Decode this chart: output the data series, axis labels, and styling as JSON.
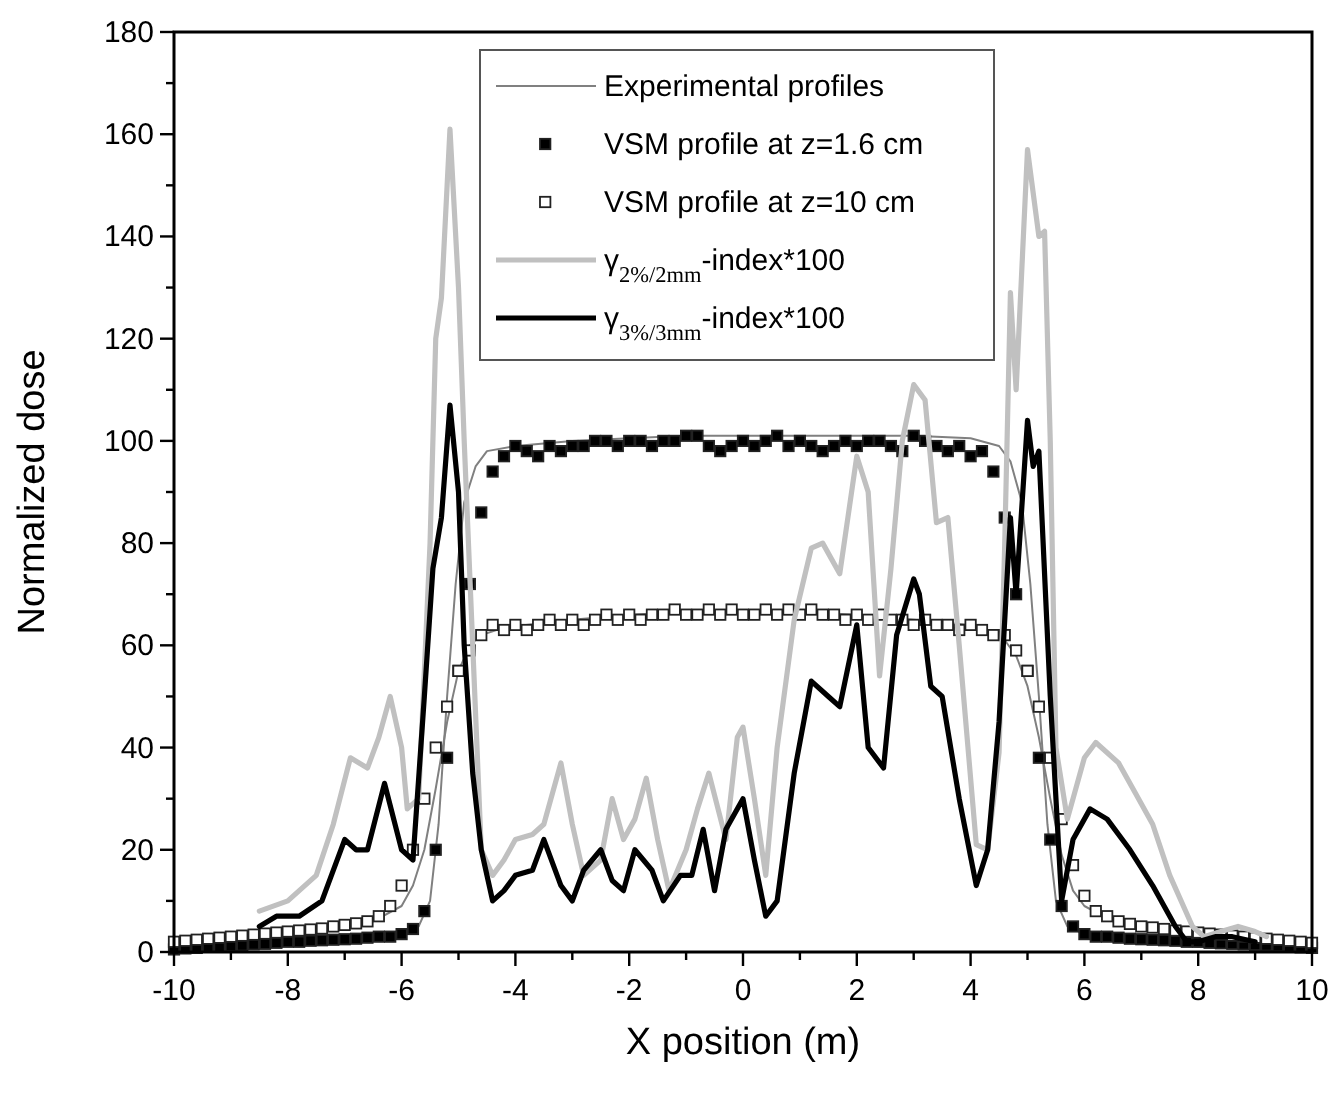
{
  "chart_data": {
    "type": "line",
    "xlabel": "X position (m)",
    "ylabel": "Normalized dose",
    "xlim": [
      -10,
      10
    ],
    "ylim": [
      0,
      180
    ],
    "xticks": [
      -10,
      {
        "value": -9,
        "label": null
      },
      -8,
      {
        "value": -7,
        "label": null
      },
      -6,
      {
        "value": -5,
        "label": null
      },
      -4,
      {
        "value": -3,
        "label": null
      },
      -2,
      {
        "value": -1,
        "label": null
      },
      0,
      {
        "value": 1,
        "label": null
      },
      2,
      {
        "value": 3,
        "label": null
      },
      4,
      {
        "value": 5,
        "label": null
      },
      6,
      {
        "value": 7,
        "label": null
      },
      8,
      {
        "value": 9,
        "label": null
      },
      10
    ],
    "yticks": [
      0,
      {
        "value": 10,
        "label": null
      },
      20,
      {
        "value": 30,
        "label": null
      },
      40,
      {
        "value": 50,
        "label": null
      },
      60,
      {
        "value": 70,
        "label": null
      },
      80,
      {
        "value": 90,
        "label": null
      },
      100,
      {
        "value": 110,
        "label": null
      },
      120,
      {
        "value": 130,
        "label": null
      },
      140,
      {
        "value": 150,
        "label": null
      },
      160,
      {
        "value": 170,
        "label": null
      },
      180
    ],
    "grid": false,
    "legend": "top",
    "series": [
      {
        "name": "Experimental profiles",
        "color": "#808080",
        "marker": "none",
        "x": [
          -10,
          -8,
          -6,
          -5.7,
          -5.5,
          -5.35,
          -5.2,
          -5.05,
          -4.9,
          -4.7,
          -4.5,
          -4,
          -3,
          -2,
          -1,
          0,
          1,
          2,
          3,
          4,
          4.5,
          4.7,
          4.9,
          5.05,
          5.2,
          5.35,
          5.5,
          5.7,
          6,
          7,
          8,
          10
        ],
        "values": [
          0.5,
          1.5,
          3,
          5,
          10,
          25,
          50,
          72,
          88,
          95,
          98,
          99,
          100,
          100.5,
          101,
          101,
          101,
          101,
          101,
          100.5,
          99,
          96,
          88,
          72,
          50,
          25,
          10,
          5,
          3.5,
          2,
          1,
          0.5
        ]
      },
      {
        "color": "#808080",
        "marker": "none",
        "x": [
          -10,
          -8,
          -6.5,
          -6,
          -5.8,
          -5.6,
          -5.4,
          -5.2,
          -5,
          -4.8,
          -4.6,
          -4.2,
          -3,
          -2,
          -1,
          0,
          1,
          2,
          3,
          4,
          4.4,
          4.6,
          4.8,
          5,
          5.2,
          5.4,
          5.6,
          5.8,
          6,
          6.5,
          8,
          10
        ],
        "values": [
          2,
          4,
          6,
          9,
          13,
          20,
          32,
          45,
          55,
          60,
          62,
          63.5,
          65,
          66,
          66.5,
          66.5,
          66.5,
          66,
          65,
          64,
          62.5,
          61,
          58,
          52,
          42,
          30,
          19,
          12,
          9,
          6,
          4,
          2
        ]
      },
      {
        "name": "VSM profile at z=1.6 cm",
        "type": "scatter",
        "color": "#000000",
        "marker": "square",
        "x": [
          -10,
          -9.8,
          -9.6,
          -9.4,
          -9.2,
          -9,
          -8.8,
          -8.6,
          -8.4,
          -8.2,
          -8,
          -7.8,
          -7.6,
          -7.4,
          -7.2,
          -7,
          -6.8,
          -6.6,
          -6.4,
          -6.2,
          -6,
          -5.8,
          -5.6,
          -5.4,
          -5.2,
          -5,
          -4.8,
          -4.6,
          -4.4,
          -4.2,
          -4,
          -3.8,
          -3.6,
          -3.4,
          -3.2,
          -3,
          -2.8,
          -2.6,
          -2.4,
          -2.2,
          -2,
          -1.8,
          -1.6,
          -1.4,
          -1.2,
          -1,
          -0.8,
          -0.6,
          -0.4,
          -0.2,
          0,
          0.2,
          0.4,
          0.6,
          0.8,
          1,
          1.2,
          1.4,
          1.6,
          1.8,
          2,
          2.2,
          2.4,
          2.6,
          2.8,
          3,
          3.2,
          3.4,
          3.6,
          3.8,
          4,
          4.2,
          4.4,
          4.6,
          4.8,
          5,
          5.2,
          5.4,
          5.6,
          5.8,
          6,
          6.2,
          6.4,
          6.6,
          6.8,
          7,
          7.2,
          7.4,
          7.6,
          7.8,
          8,
          8.2,
          8.4,
          8.6,
          8.8,
          9,
          9.2,
          9.4,
          9.6,
          9.8,
          10
        ],
        "values": [
          0.5,
          0.7,
          0.8,
          1,
          1,
          1.2,
          1.3,
          1.5,
          1.6,
          1.8,
          2,
          2,
          2.2,
          2.3,
          2.4,
          2.5,
          2.6,
          2.8,
          3,
          3,
          3.5,
          4.5,
          8,
          20,
          38,
          55,
          72,
          86,
          94,
          97,
          99,
          98,
          97,
          99,
          98,
          99,
          99,
          100,
          100,
          99,
          100,
          100,
          99,
          100,
          100,
          101,
          101,
          99,
          98,
          99,
          100,
          99,
          100,
          101,
          99,
          100,
          99,
          98,
          99,
          100,
          99,
          100,
          100,
          99,
          98,
          101,
          100,
          99,
          98,
          99,
          97,
          98,
          94,
          85,
          70,
          55,
          38,
          22,
          9,
          5,
          3.5,
          3,
          3,
          2.8,
          2.6,
          2.5,
          2.4,
          2.3,
          2.2,
          2,
          2,
          1.8,
          1.7,
          1.6,
          1.5,
          1.4,
          1.3,
          1.2,
          1,
          0.9,
          0.8
        ]
      },
      {
        "name": "VSM profile at z=10 cm",
        "type": "scatter",
        "color": "#ffffff",
        "marker": "square",
        "x": [
          -10,
          -9.8,
          -9.6,
          -9.4,
          -9.2,
          -9,
          -8.8,
          -8.6,
          -8.4,
          -8.2,
          -8,
          -7.8,
          -7.6,
          -7.4,
          -7.2,
          -7,
          -6.8,
          -6.6,
          -6.4,
          -6.2,
          -6,
          -5.8,
          -5.6,
          -5.4,
          -5.2,
          -5,
          -4.8,
          -4.6,
          -4.4,
          -4.2,
          -4,
          -3.8,
          -3.6,
          -3.4,
          -3.2,
          -3,
          -2.8,
          -2.6,
          -2.4,
          -2.2,
          -2,
          -1.8,
          -1.6,
          -1.4,
          -1.2,
          -1,
          -0.8,
          -0.6,
          -0.4,
          -0.2,
          0,
          0.2,
          0.4,
          0.6,
          0.8,
          1,
          1.2,
          1.4,
          1.6,
          1.8,
          2,
          2.2,
          2.4,
          2.6,
          2.8,
          3,
          3.2,
          3.4,
          3.6,
          3.8,
          4,
          4.2,
          4.4,
          4.6,
          4.8,
          5,
          5.2,
          5.4,
          5.6,
          5.8,
          6,
          6.2,
          6.4,
          6.6,
          6.8,
          7,
          7.2,
          7.4,
          7.6,
          7.8,
          8,
          8.2,
          8.4,
          8.6,
          8.8,
          9,
          9.2,
          9.4,
          9.6,
          9.8,
          10
        ],
        "values": [
          2,
          2.2,
          2.4,
          2.6,
          2.8,
          3,
          3.2,
          3.4,
          3.6,
          3.8,
          4,
          4.2,
          4.4,
          4.6,
          5,
          5.3,
          5.6,
          6,
          7,
          9,
          13,
          20,
          30,
          40,
          48,
          55,
          59,
          62,
          64,
          63,
          64,
          63,
          64,
          65,
          64,
          65,
          64,
          65,
          66,
          65,
          66,
          65,
          66,
          66,
          67,
          66,
          66,
          67,
          66,
          67,
          66,
          66,
          67,
          66,
          67,
          66,
          67,
          66,
          66,
          65,
          66,
          65,
          66,
          65,
          65,
          64,
          65,
          64,
          64,
          63,
          64,
          63,
          62,
          62,
          59,
          55,
          48,
          38,
          26,
          17,
          11,
          8,
          7,
          6,
          5.5,
          5,
          4.8,
          4.5,
          4.2,
          4,
          3.8,
          3.6,
          3.4,
          3.2,
          3,
          2.8,
          2.6,
          2.4,
          2.2,
          2,
          1.8
        ]
      },
      {
        "name": "γ$_{2%/2mm}$-index*100",
        "color": "#c0c0c0",
        "marker": "none",
        "x": [
          -8.5,
          -8,
          -7.5,
          -7.2,
          -6.9,
          -6.6,
          -6.4,
          -6.2,
          -6,
          -5.9,
          -5.7,
          -5.5,
          -5.4,
          -5.3,
          -5.15,
          -5,
          -4.9,
          -4.75,
          -4.6,
          -4.4,
          -4.2,
          -4,
          -3.7,
          -3.5,
          -3.2,
          -3,
          -2.8,
          -2.5,
          -2.3,
          -2.1,
          -1.9,
          -1.7,
          -1.5,
          -1.3,
          -1,
          -0.8,
          -0.6,
          -0.3,
          -0.1,
          0,
          0.2,
          0.4,
          0.6,
          0.9,
          1.2,
          1.4,
          1.7,
          2,
          2.2,
          2.4,
          2.6,
          2.8,
          3,
          3.2,
          3.4,
          3.6,
          3.8,
          4.1,
          4.3,
          4.5,
          4.6,
          4.7,
          4.8,
          5,
          5.2,
          5.3,
          5.4,
          5.5,
          5.7,
          6,
          6.2,
          6.6,
          6.9,
          7.2,
          7.5,
          7.9,
          8.1,
          8.4,
          8.7,
          9,
          9.2
        ],
        "values": [
          8,
          10,
          15,
          25,
          38,
          36,
          42,
          50,
          40,
          28,
          30,
          80,
          120,
          128,
          161,
          130,
          100,
          60,
          20,
          15,
          18,
          22,
          23,
          25,
          37,
          25,
          15,
          18,
          30,
          22,
          26,
          34,
          22,
          12,
          20,
          28,
          35,
          22,
          42,
          44,
          30,
          15,
          40,
          65,
          79,
          80,
          74,
          97,
          90,
          54,
          75,
          100,
          111,
          108,
          84,
          85,
          60,
          21,
          20,
          39,
          80,
          129,
          110,
          157,
          140,
          141,
          100,
          40,
          26,
          38,
          41,
          37,
          31,
          25,
          15,
          5,
          3,
          4,
          5,
          4,
          3
        ]
      },
      {
        "name": "γ$_{3%/3mm}$-index*100",
        "color": "#000000",
        "marker": "none",
        "x": [
          -8.5,
          -8.2,
          -7.8,
          -7.4,
          -7,
          -6.8,
          -6.6,
          -6.3,
          -6,
          -5.8,
          -5.6,
          -5.45,
          -5.3,
          -5.15,
          -5,
          -4.9,
          -4.75,
          -4.6,
          -4.4,
          -4.2,
          -4,
          -3.7,
          -3.5,
          -3.2,
          -3,
          -2.8,
          -2.5,
          -2.3,
          -2.1,
          -1.9,
          -1.6,
          -1.4,
          -1.1,
          -0.9,
          -0.7,
          -0.5,
          -0.3,
          0,
          0.2,
          0.4,
          0.6,
          0.9,
          1.2,
          1.5,
          1.7,
          2,
          2.2,
          2.47,
          2.7,
          3,
          3.1,
          3.3,
          3.5,
          3.8,
          4.1,
          4.3,
          4.5,
          4.7,
          4.8,
          5,
          5.1,
          5.2,
          5.4,
          5.6,
          5.8,
          6.1,
          6.4,
          6.8,
          7.2,
          7.6,
          7.8,
          8,
          8.3,
          8.6,
          9
        ],
        "values": [
          5,
          7,
          7,
          10,
          22,
          20,
          20,
          33,
          20,
          18,
          50,
          75,
          85,
          107,
          90,
          60,
          35,
          20,
          10,
          12,
          15,
          16,
          22,
          13,
          10,
          16,
          20,
          14,
          12,
          20,
          16,
          10,
          15,
          15,
          24,
          12,
          24,
          30,
          18,
          7,
          10,
          35,
          53,
          50,
          48,
          64,
          40,
          36,
          62,
          73,
          70,
          52,
          50,
          30,
          13,
          20,
          45,
          85,
          70,
          104,
          95,
          98,
          50,
          10,
          22,
          28,
          26,
          20,
          13,
          5,
          2,
          2,
          3,
          3,
          2
        ]
      }
    ]
  }
}
